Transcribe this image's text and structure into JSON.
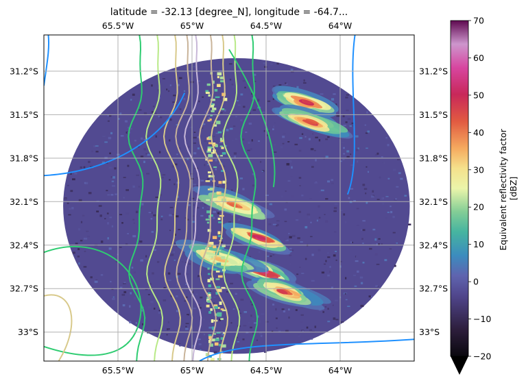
{
  "chart_data": {
    "type": "heatmap",
    "title": "latitude = -32.13 [degree_N], longitude = -64.7...",
    "x_ticks": [
      "65.5°W",
      "65°W",
      "64.5°W",
      "64°W"
    ],
    "y_ticks": [
      "31.2°S",
      "31.5°S",
      "31.8°S",
      "32.1°S",
      "32.4°S",
      "32.7°S",
      "33°S"
    ],
    "x_tick_values": [
      -65.5,
      -65.0,
      -64.5,
      -64.0
    ],
    "y_tick_values": [
      -31.2,
      -31.5,
      -31.8,
      -32.1,
      -32.4,
      -32.7,
      -33.0
    ],
    "xlim": [
      -66.0,
      -63.5
    ],
    "ylim": [
      -33.2,
      -30.95
    ],
    "grid": true,
    "radar": {
      "center_lat": -32.13,
      "center_lon": -64.7,
      "range_deg_lat": 1.02,
      "range_deg_lon": 1.17,
      "background_value": -3,
      "storm_cells": [
        {
          "lon": -64.55,
          "lat": -32.35,
          "peak": 52
        },
        {
          "lon": -64.52,
          "lat": -32.58,
          "peak": 55
        },
        {
          "lon": -64.38,
          "lat": -32.72,
          "peak": 45
        },
        {
          "lon": -64.22,
          "lat": -31.42,
          "peak": 48
        },
        {
          "lon": -64.2,
          "lat": -31.55,
          "peak": 45
        },
        {
          "lon": -64.72,
          "lat": -32.12,
          "peak": 40
        },
        {
          "lon": -64.8,
          "lat": -32.5,
          "peak": 35
        }
      ]
    },
    "colorbar": {
      "label": "Equivalent reflectivity factor\n[dBZ]",
      "min": -20,
      "max": 70,
      "ticks": [
        "70",
        "60",
        "50",
        "40",
        "30",
        "20",
        "10",
        "0",
        "−10",
        "−20"
      ],
      "tick_values": [
        70,
        60,
        50,
        40,
        30,
        20,
        10,
        0,
        -10,
        -20
      ],
      "extend": "min",
      "colormap": "spectral"
    }
  }
}
